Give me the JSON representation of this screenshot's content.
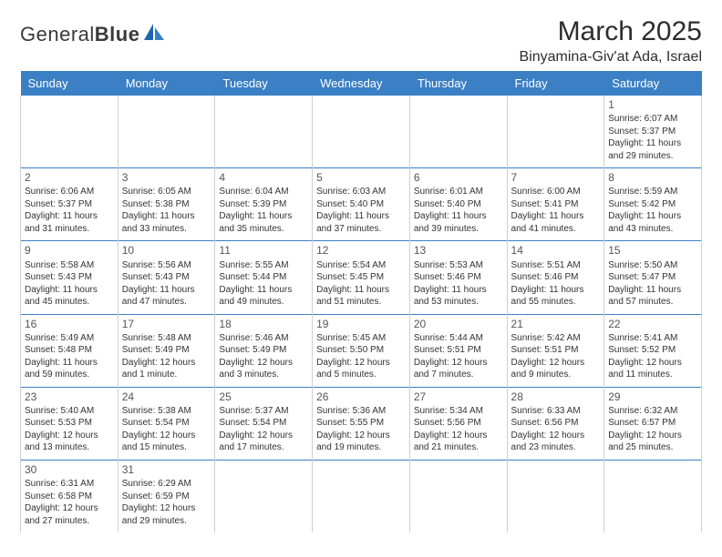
{
  "brand": {
    "name_a": "General",
    "name_b": "Blue"
  },
  "title": "March 2025",
  "location": "Binyamina-Giv'at Ada, Israel",
  "colors": {
    "header_bg": "#3b7fc4",
    "header_text": "#ffffff",
    "row_divider": "#3b7fc4",
    "cell_divider": "#d0d0d0",
    "text": "#333333"
  },
  "day_headers": [
    "Sunday",
    "Monday",
    "Tuesday",
    "Wednesday",
    "Thursday",
    "Friday",
    "Saturday"
  ],
  "weeks": [
    [
      null,
      null,
      null,
      null,
      null,
      null,
      {
        "n": "1",
        "sunrise": "6:07 AM",
        "sunset": "5:37 PM",
        "daylight": "11 hours and 29 minutes."
      }
    ],
    [
      {
        "n": "2",
        "sunrise": "6:06 AM",
        "sunset": "5:37 PM",
        "daylight": "11 hours and 31 minutes."
      },
      {
        "n": "3",
        "sunrise": "6:05 AM",
        "sunset": "5:38 PM",
        "daylight": "11 hours and 33 minutes."
      },
      {
        "n": "4",
        "sunrise": "6:04 AM",
        "sunset": "5:39 PM",
        "daylight": "11 hours and 35 minutes."
      },
      {
        "n": "5",
        "sunrise": "6:03 AM",
        "sunset": "5:40 PM",
        "daylight": "11 hours and 37 minutes."
      },
      {
        "n": "6",
        "sunrise": "6:01 AM",
        "sunset": "5:40 PM",
        "daylight": "11 hours and 39 minutes."
      },
      {
        "n": "7",
        "sunrise": "6:00 AM",
        "sunset": "5:41 PM",
        "daylight": "11 hours and 41 minutes."
      },
      {
        "n": "8",
        "sunrise": "5:59 AM",
        "sunset": "5:42 PM",
        "daylight": "11 hours and 43 minutes."
      }
    ],
    [
      {
        "n": "9",
        "sunrise": "5:58 AM",
        "sunset": "5:43 PM",
        "daylight": "11 hours and 45 minutes."
      },
      {
        "n": "10",
        "sunrise": "5:56 AM",
        "sunset": "5:43 PM",
        "daylight": "11 hours and 47 minutes."
      },
      {
        "n": "11",
        "sunrise": "5:55 AM",
        "sunset": "5:44 PM",
        "daylight": "11 hours and 49 minutes."
      },
      {
        "n": "12",
        "sunrise": "5:54 AM",
        "sunset": "5:45 PM",
        "daylight": "11 hours and 51 minutes."
      },
      {
        "n": "13",
        "sunrise": "5:53 AM",
        "sunset": "5:46 PM",
        "daylight": "11 hours and 53 minutes."
      },
      {
        "n": "14",
        "sunrise": "5:51 AM",
        "sunset": "5:46 PM",
        "daylight": "11 hours and 55 minutes."
      },
      {
        "n": "15",
        "sunrise": "5:50 AM",
        "sunset": "5:47 PM",
        "daylight": "11 hours and 57 minutes."
      }
    ],
    [
      {
        "n": "16",
        "sunrise": "5:49 AM",
        "sunset": "5:48 PM",
        "daylight": "11 hours and 59 minutes."
      },
      {
        "n": "17",
        "sunrise": "5:48 AM",
        "sunset": "5:49 PM",
        "daylight": "12 hours and 1 minute."
      },
      {
        "n": "18",
        "sunrise": "5:46 AM",
        "sunset": "5:49 PM",
        "daylight": "12 hours and 3 minutes."
      },
      {
        "n": "19",
        "sunrise": "5:45 AM",
        "sunset": "5:50 PM",
        "daylight": "12 hours and 5 minutes."
      },
      {
        "n": "20",
        "sunrise": "5:44 AM",
        "sunset": "5:51 PM",
        "daylight": "12 hours and 7 minutes."
      },
      {
        "n": "21",
        "sunrise": "5:42 AM",
        "sunset": "5:51 PM",
        "daylight": "12 hours and 9 minutes."
      },
      {
        "n": "22",
        "sunrise": "5:41 AM",
        "sunset": "5:52 PM",
        "daylight": "12 hours and 11 minutes."
      }
    ],
    [
      {
        "n": "23",
        "sunrise": "5:40 AM",
        "sunset": "5:53 PM",
        "daylight": "12 hours and 13 minutes."
      },
      {
        "n": "24",
        "sunrise": "5:38 AM",
        "sunset": "5:54 PM",
        "daylight": "12 hours and 15 minutes."
      },
      {
        "n": "25",
        "sunrise": "5:37 AM",
        "sunset": "5:54 PM",
        "daylight": "12 hours and 17 minutes."
      },
      {
        "n": "26",
        "sunrise": "5:36 AM",
        "sunset": "5:55 PM",
        "daylight": "12 hours and 19 minutes."
      },
      {
        "n": "27",
        "sunrise": "5:34 AM",
        "sunset": "5:56 PM",
        "daylight": "12 hours and 21 minutes."
      },
      {
        "n": "28",
        "sunrise": "6:33 AM",
        "sunset": "6:56 PM",
        "daylight": "12 hours and 23 minutes."
      },
      {
        "n": "29",
        "sunrise": "6:32 AM",
        "sunset": "6:57 PM",
        "daylight": "12 hours and 25 minutes."
      }
    ],
    [
      {
        "n": "30",
        "sunrise": "6:31 AM",
        "sunset": "6:58 PM",
        "daylight": "12 hours and 27 minutes."
      },
      {
        "n": "31",
        "sunrise": "6:29 AM",
        "sunset": "6:59 PM",
        "daylight": "12 hours and 29 minutes."
      },
      null,
      null,
      null,
      null,
      null
    ]
  ],
  "labels": {
    "sunrise": "Sunrise:",
    "sunset": "Sunset:",
    "daylight": "Daylight:"
  }
}
